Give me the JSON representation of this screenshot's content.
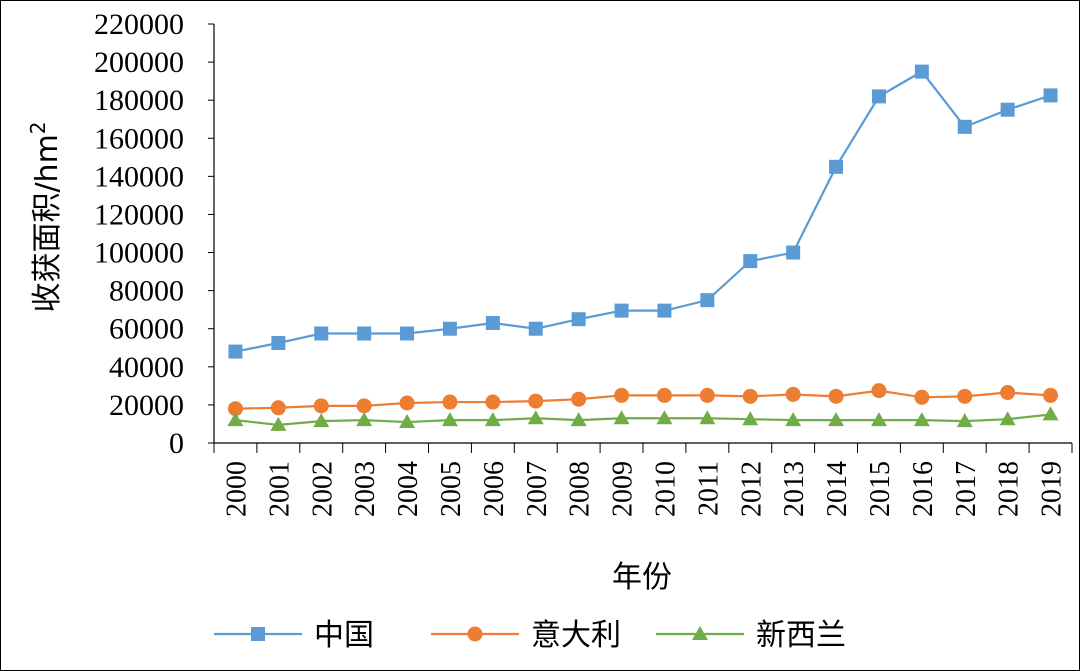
{
  "chart_data": {
    "type": "line",
    "title": "",
    "xlabel": "年份",
    "ylabel": "收获面积/hm",
    "ylabel_superscript": "2",
    "ylim": [
      0,
      220000
    ],
    "yticks": [
      "0",
      "20000",
      "40000",
      "60000",
      "80000",
      "100000",
      "120000",
      "140000",
      "160000",
      "180000",
      "200000",
      "220000"
    ],
    "categories": [
      "2000",
      "2001",
      "2002",
      "2003",
      "2004",
      "2005",
      "2006",
      "2007",
      "2008",
      "2009",
      "2010",
      "2011",
      "2012",
      "2013",
      "2014",
      "2015",
      "2016",
      "2017",
      "2018",
      "2019"
    ],
    "legend_position": "bottom",
    "series": [
      {
        "name": "中国",
        "color": "#5B9BD5",
        "marker": "square",
        "values": [
          48000,
          52500,
          57500,
          57500,
          57500,
          60000,
          63000,
          60000,
          65000,
          69500,
          69500,
          75000,
          95500,
          100000,
          145000,
          182000,
          195000,
          166000,
          175000,
          182500
        ]
      },
      {
        "name": "意大利",
        "color": "#ED7D31",
        "marker": "circle",
        "values": [
          18000,
          18500,
          19500,
          19500,
          21000,
          21500,
          21500,
          22000,
          23000,
          25000,
          25000,
          25000,
          24500,
          25500,
          24500,
          27500,
          24000,
          24500,
          26500,
          25000
        ]
      },
      {
        "name": "新西兰",
        "color": "#70AD47",
        "marker": "triangle",
        "values": [
          12000,
          9500,
          11500,
          12000,
          11000,
          12000,
          12000,
          13000,
          12000,
          13000,
          13000,
          13000,
          12500,
          12000,
          12000,
          12000,
          12000,
          11500,
          12500,
          15000
        ]
      }
    ]
  }
}
